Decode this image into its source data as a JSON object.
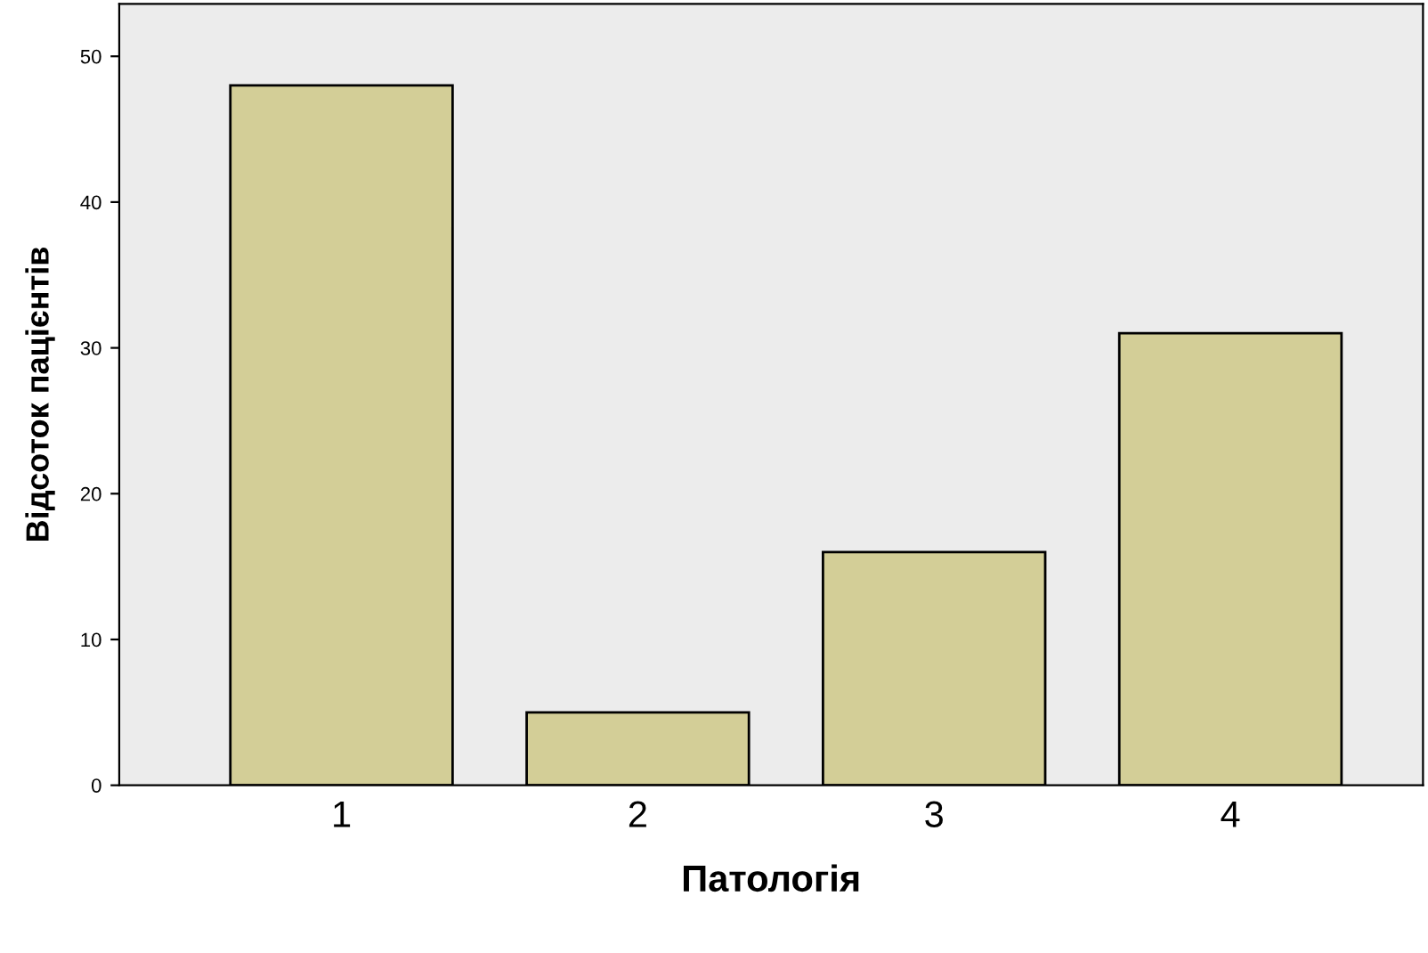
{
  "chart_data": {
    "type": "bar",
    "xlabel": "Патологія",
    "ylabel": "Відсоток пацієнтів",
    "categories": [
      "1",
      "2",
      "3",
      "4"
    ],
    "values": [
      48,
      5,
      16,
      31
    ],
    "color": "#d3ce97",
    "ylim": [
      0,
      53.6
    ],
    "yticks": [
      0,
      10,
      20,
      30,
      40,
      50
    ],
    "grid": false
  }
}
